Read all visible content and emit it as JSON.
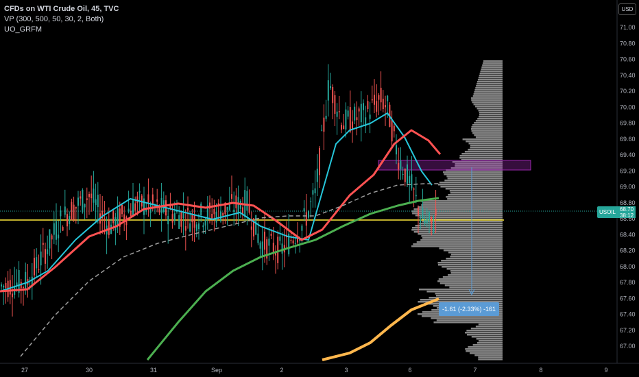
{
  "legend": {
    "title": "CFDs on WTI Crude Oil, 45, TVC",
    "indicator1": "VP (300, 500, 50, 30, 2, Both)",
    "indicator2": "UO_GRFM"
  },
  "currency_button": "USD",
  "price_axis": {
    "ticks": [
      "71.00",
      "70.80",
      "70.60",
      "70.40",
      "70.20",
      "70.00",
      "69.80",
      "69.60",
      "69.40",
      "69.20",
      "69.00",
      "68.80",
      "68.60",
      "68.40",
      "68.20",
      "68.00",
      "67.80",
      "67.60",
      "67.40",
      "67.20",
      "67.00"
    ]
  },
  "time_axis": {
    "ticks": [
      "27",
      "30",
      "31",
      "Sep",
      "2",
      "3",
      "6",
      "7",
      "8",
      "9"
    ]
  },
  "price_tag": {
    "symbol": "USOIL",
    "price": "68.70",
    "countdown": "38:12"
  },
  "measure_label": "-1.61 (-2.33%) -161",
  "colors": {
    "background": "#000000",
    "up": "#26a69a",
    "down": "#ef5350",
    "ema_fast": "#26c6da",
    "ema_slow": "#ff5252",
    "ma_green": "#4caf50",
    "ma_dashed": "#9e9e9e",
    "ma_orange": "#ffb74d",
    "horizontal_line": "#ffeb3b",
    "zone": "#9c27b0",
    "volume_profile": "#9e9e9e",
    "measure": "#5b9bd5"
  }
}
